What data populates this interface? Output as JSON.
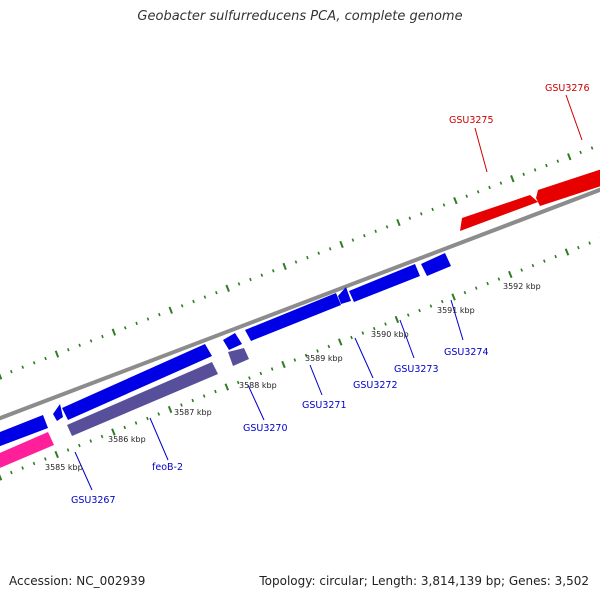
{
  "title": "Geobacter sulfurreducens PCA, complete genome",
  "footer": {
    "accession": "Accession: NC_002939",
    "summary": "Topology: circular; Length: 3,814,139 bp; Genes: 3,502"
  },
  "colors": {
    "background": "#ffffff",
    "backbone": "#8c8c8c",
    "tick": "#2e7d22",
    "forward_gene": "#e60000",
    "reverse_gene": "#0000e6",
    "rna_or_other_gene": "#574f99",
    "pink_gene": "#ff1f9a",
    "forward_label": "#cc0000",
    "reverse_label": "#0000cc"
  },
  "scale_labels": [
    "3585 kbp",
    "3586 kbp",
    "3587 kbp",
    "3588 kbp",
    "3589 kbp",
    "3590 kbp",
    "3591 kbp",
    "3592 kbp"
  ],
  "genes": {
    "forward": [
      "GSU3275",
      "GSU3276"
    ],
    "reverse": [
      "GSU3267",
      "feoB-2",
      "GSU3270",
      "GSU3271",
      "GSU3272",
      "GSU3273",
      "GSU3274"
    ]
  }
}
